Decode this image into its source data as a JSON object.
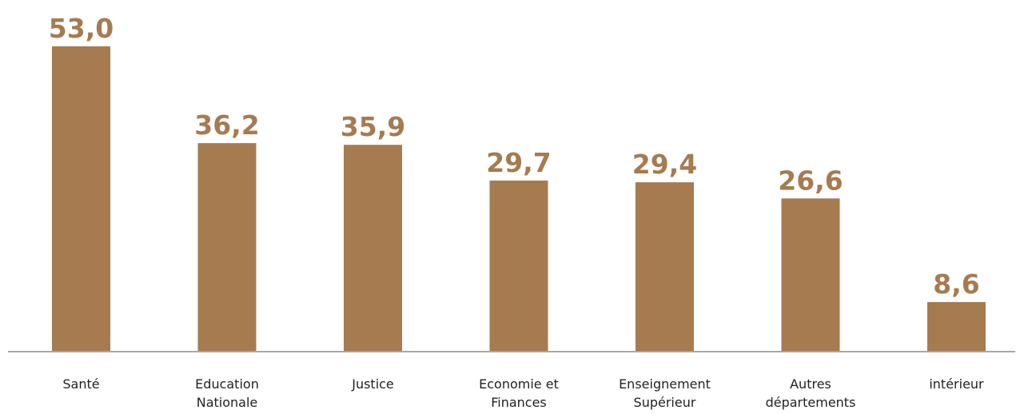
{
  "chart_data": {
    "type": "bar",
    "categories": [
      [
        "Santé"
      ],
      [
        "Education",
        "Nationale"
      ],
      [
        "Justice"
      ],
      [
        "Economie et",
        "Finances"
      ],
      [
        "Enseignement",
        "Supérieur"
      ],
      [
        "Autres",
        "départements"
      ],
      [
        "intérieur"
      ]
    ],
    "values": [
      53.0,
      36.2,
      35.9,
      29.7,
      29.4,
      26.6,
      8.6
    ],
    "value_labels": [
      "53,0",
      "36,2",
      "35,9",
      "29,7",
      "29,4",
      "26,6",
      "8,6"
    ],
    "title": "",
    "xlabel": "",
    "ylabel": "",
    "ylim": [
      0,
      53.0
    ],
    "grid": false,
    "legend": "none",
    "colors": {
      "bar": "#a67b50",
      "value_label": "#a67b50",
      "axis": "#a6a6a6",
      "category_label": "#222222"
    }
  }
}
